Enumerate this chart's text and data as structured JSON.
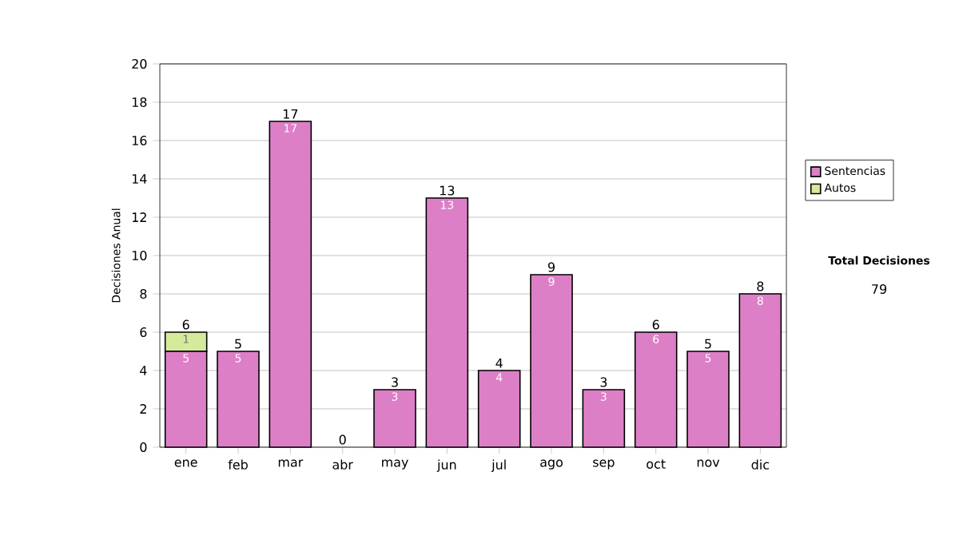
{
  "chart_data": {
    "type": "bar",
    "stacked": true,
    "ylabel": "Decisiones Anual",
    "categories": [
      "ene",
      "feb",
      "mar",
      "abr",
      "may",
      "jun",
      "jul",
      "ago",
      "sep",
      "oct",
      "nov",
      "dic"
    ],
    "series": [
      {
        "name": "Sentencias",
        "color": "#dd7fc6",
        "values": [
          5,
          5,
          17,
          0,
          3,
          13,
          4,
          9,
          3,
          6,
          5,
          8
        ],
        "value_labels": [
          "5",
          "5",
          "17",
          null,
          "3",
          "13",
          "4",
          "9",
          "3",
          "6",
          "5",
          "8"
        ]
      },
      {
        "name": "Autos",
        "color": "#d6ea9c",
        "values": [
          1,
          0,
          0,
          0,
          0,
          0,
          0,
          0,
          0,
          0,
          0,
          0
        ],
        "value_labels": [
          "1",
          null,
          null,
          null,
          null,
          null,
          null,
          null,
          null,
          null,
          null,
          null
        ]
      }
    ],
    "totals": [
      "6",
      "5",
      "17",
      "0",
      "3",
      "13",
      "4",
      "9",
      "3",
      "6",
      "5",
      "8"
    ],
    "ylim": [
      0,
      20
    ],
    "yticks": [
      0,
      2,
      4,
      6,
      8,
      10,
      12,
      14,
      16,
      18,
      20
    ],
    "grid": "y",
    "legend": "right",
    "annotations": [
      "Total Decisiones",
      "79"
    ]
  }
}
